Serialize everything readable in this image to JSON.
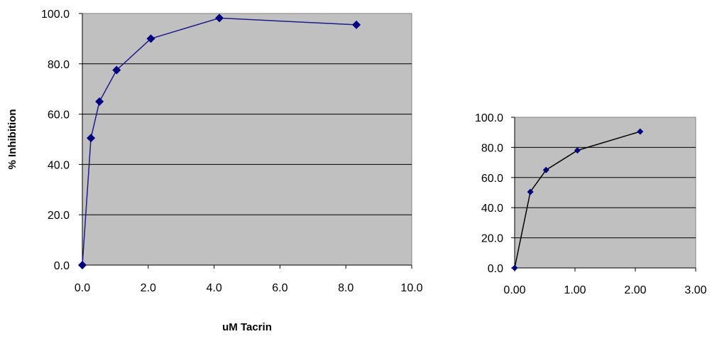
{
  "chart_data": [
    {
      "type": "scatter",
      "title": "",
      "xlabel": "uM Tacrin",
      "ylabel": "% Inhibition",
      "xlim": [
        0,
        10
      ],
      "ylim": [
        0,
        100
      ],
      "xticks": [
        "0.0",
        "2.0",
        "4.0",
        "6.0",
        "8.0",
        "10.0"
      ],
      "yticks": [
        "0.0",
        "20.0",
        "40.0",
        "60.0",
        "80.0",
        "100.0"
      ],
      "grid": "horizontal",
      "legend": "none",
      "plot_background": "#c0c0c0",
      "series": [
        {
          "line_color": "#1c1c8c",
          "marker_color": "#000080",
          "marker": "diamond",
          "x": [
            0,
            0.26,
            0.52,
            1.04,
            2.08,
            4.16,
            8.32
          ],
          "y": [
            0,
            50.5,
            65,
            77.5,
            90,
            98.2,
            95.5
          ]
        }
      ]
    },
    {
      "type": "scatter",
      "title": "",
      "xlabel": "",
      "ylabel": "",
      "xlim": [
        0,
        3
      ],
      "ylim": [
        0,
        100
      ],
      "xticks": [
        "0.00",
        "1.00",
        "2.00",
        "3.00"
      ],
      "yticks": [
        "0.0",
        "20.0",
        "40.0",
        "60.0",
        "80.0",
        "100.0"
      ],
      "grid": "horizontal",
      "legend": "none",
      "plot_background": "#c0c0c0",
      "series": [
        {
          "line_color": "#000000",
          "marker_color": "#000080",
          "marker": "diamond",
          "x": [
            0,
            0.26,
            0.52,
            1.04,
            2.08
          ],
          "y": [
            0,
            50.5,
            65,
            78,
            90.5
          ]
        }
      ]
    }
  ]
}
